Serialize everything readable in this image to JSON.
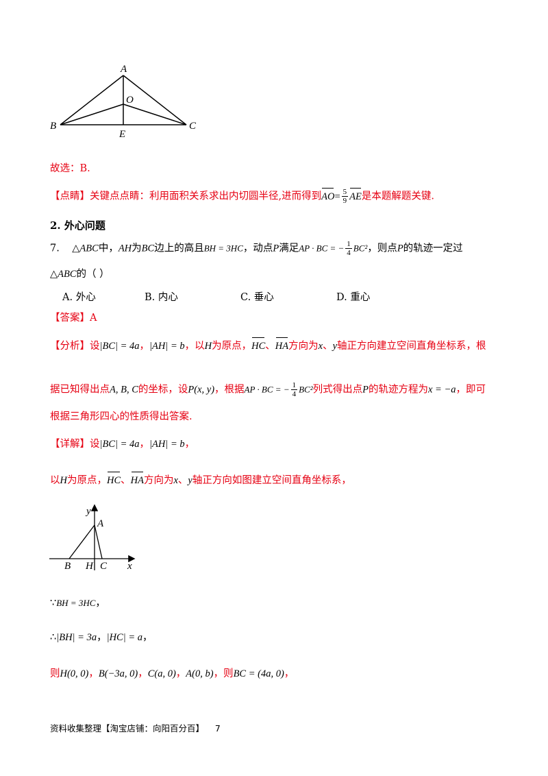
{
  "figure1": {
    "labels": {
      "A": "A",
      "O": "O",
      "B": "B",
      "E": "E",
      "C": "C"
    }
  },
  "line_guxuan": "故选：B.",
  "dianjing": {
    "tag": "【点睛】",
    "text_before": "关键点点睛：利用面积关系求出内切圆半径,进而得到",
    "formula_lhs": "AO",
    "formula_eq": "=",
    "frac_num": "5",
    "frac_den": "9",
    "formula_rhs": "AE",
    "text_after": "是本题解题关键."
  },
  "section_title": "2. 外心问题",
  "question": {
    "number": "7.",
    "tri": "△ABC",
    "t1": "中，",
    "AH": "AH",
    "t2": "为",
    "BC": "BC",
    "t3": "边上的高且",
    "cond": "BH = 3HC",
    "t4": "，动点",
    "P": "P",
    "t5": "满足",
    "cond2_lhs": "AP · BC = −",
    "cond2_num": "1",
    "cond2_den": "4",
    "cond2_rhs": "BC²",
    "t6": "，则点",
    "t7": "的轨迹一定过",
    "line2_tri": "△ABC",
    "line2_text": "的（    ）"
  },
  "options": [
    {
      "key": "A.",
      "text": "外心"
    },
    {
      "key": "B.",
      "text": "内心"
    },
    {
      "key": "C.",
      "text": "垂心"
    },
    {
      "key": "D.",
      "text": "重心"
    }
  ],
  "answer": {
    "tag": "【答案】",
    "value": "A"
  },
  "fenxi": {
    "tag": "【分析】",
    "l1_a": "设",
    "l1_bc": "|BC| = 4a",
    "l1_sep": "，",
    "l1_ah": "|AH| = b",
    "l1_b": "，以",
    "l1_h": "H",
    "l1_c": "为原点，",
    "l1_hc": "HC",
    "l1_d": "、",
    "l1_ha": "HA",
    "l1_e": "方向为",
    "l1_x": "x",
    "l1_f": "、",
    "l1_y": "y",
    "l1_g": "轴正方向建立空间直角坐标系，根",
    "l2_a": "据已知得出点",
    "l2_pts": "A, B, C",
    "l2_b": "的坐标，设",
    "l2_p": "P(x, y)",
    "l2_c": "，根据",
    "l2_f_lhs": "AP · BC = −",
    "l2_f_num": "1",
    "l2_f_den": "4",
    "l2_f_rhs": "BC²",
    "l2_d": "列式得出点",
    "l2_P": "P",
    "l2_e": "的轨迹方程为",
    "l2_eq": "x = −a",
    "l2_f": "，即可",
    "l3": "根据三角形四心的性质得出答案."
  },
  "xiangjie": {
    "tag": "【详解】",
    "l1_a": "设",
    "l1_bc": "|BC| = 4a",
    "l1_sep": "，",
    "l1_ah": "|AH| = b",
    "l1_end": "，",
    "l2_a": "以",
    "l2_h": "H",
    "l2_b": "为原点，",
    "l2_hc": "HC",
    "l2_c": "、",
    "l2_ha": "HA",
    "l2_d": "方向为",
    "l2_x": "x",
    "l2_e": "、",
    "l2_y": "y",
    "l2_f": "轴正方向如图建立空间直角坐标系，"
  },
  "figure2": {
    "labels": {
      "y": "y",
      "A": "A",
      "B": "B",
      "H": "H",
      "C": "C",
      "x": "x"
    }
  },
  "step1": {
    "sym": "∵",
    "expr": "BH = 3HC",
    "end": "，"
  },
  "step2": {
    "sym": "∴",
    "e1": "|BH| = 3a",
    "sep": "，",
    "e2": "|HC| = a",
    "end": "，"
  },
  "step3": {
    "a": "则",
    "H": "H(0, 0)",
    "s1": "，",
    "B": "B(−3a, 0)",
    "s2": "，",
    "C": "C(a, 0)",
    "s3": "，",
    "A": "A(0, b)",
    "s4": "，则",
    "BC": "BC = (4a, 0)",
    "end": "，"
  },
  "footer": {
    "text": "资料收集整理【淘宝店铺：向阳百分百】",
    "page": "7"
  }
}
